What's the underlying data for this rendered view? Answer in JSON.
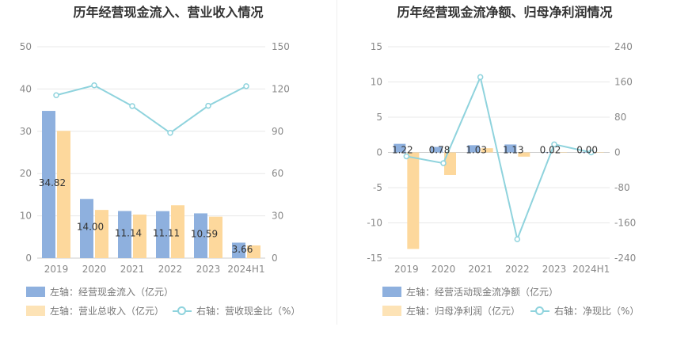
{
  "titles": {
    "left": "历年经营现金流入、营业收入情况",
    "right": "历年经营现金流净额、归母净利润情况"
  },
  "legends": {
    "left": [
      "左轴：经营现金流入（亿元）",
      "左轴：营业总收入（亿元）",
      "右轴：营收现金比（%）"
    ],
    "right": [
      "左轴：经营活动现金流净额（亿元）",
      "左轴：归母净利润（亿元）",
      "右轴：净现比（%）"
    ]
  },
  "colors": {
    "bar1": "#8eb0de",
    "bar2": "#fdd89c",
    "line": "#8fd3dd",
    "grid": "#e8e8e8",
    "axis": "#cccccc"
  },
  "chart_data": [
    {
      "type": "bar",
      "title": "历年经营现金流入、营业收入情况",
      "categories": [
        "2019",
        "2020",
        "2021",
        "2022",
        "2023",
        "2024H1"
      ],
      "left_axis": {
        "ylim": [
          0,
          50
        ],
        "ticks": [
          "0",
          "10",
          "20",
          "30",
          "40",
          "50"
        ]
      },
      "right_axis": {
        "ylim": [
          0,
          150
        ],
        "ticks": [
          "0",
          "30",
          "60",
          "90",
          "120",
          "150"
        ]
      },
      "series": [
        {
          "name": "左轴：经营现金流入（亿元）",
          "axis": "left",
          "kind": "bar",
          "values": [
            34.82,
            14.0,
            11.14,
            11.11,
            10.59,
            3.66
          ],
          "labels": [
            "34.82",
            "14.00",
            "11.14",
            "11.11",
            "10.59",
            "3.66"
          ]
        },
        {
          "name": "左轴：营业总收入（亿元）",
          "axis": "left",
          "kind": "bar",
          "values": [
            30.1,
            11.4,
            10.3,
            12.5,
            9.8,
            3.0
          ]
        },
        {
          "name": "右轴：营收现金比（%）",
          "axis": "right",
          "kind": "line",
          "values": [
            115.6,
            122.6,
            107.9,
            88.9,
            108.1,
            122.0
          ]
        }
      ]
    },
    {
      "type": "bar",
      "title": "历年经营现金流净额、归母净利润情况",
      "categories": [
        "2019",
        "2020",
        "2021",
        "2022",
        "2023",
        "2024H1"
      ],
      "left_axis": {
        "ylim": [
          -15,
          15
        ],
        "ticks": [
          "-15",
          "-10",
          "-5",
          "0",
          "5",
          "10",
          "15"
        ]
      },
      "right_axis": {
        "ylim": [
          -240,
          240
        ],
        "ticks": [
          "-240",
          "-160",
          "-80",
          "0",
          "80",
          "160",
          "240"
        ]
      },
      "series": [
        {
          "name": "左轴：经营活动现金流净额（亿元）",
          "axis": "left",
          "kind": "bar",
          "values": [
            1.22,
            0.78,
            1.03,
            1.13,
            0.02,
            0.0
          ],
          "labels": [
            "1.22",
            "0.78",
            "1.03",
            "1.13",
            "0.02",
            "0.00"
          ]
        },
        {
          "name": "左轴：归母净利润（亿元）",
          "axis": "left",
          "kind": "bar",
          "values": [
            -13.7,
            -3.2,
            0.6,
            -0.6,
            0.0,
            0.0
          ]
        },
        {
          "name": "右轴：净现比（%）",
          "axis": "right",
          "kind": "line",
          "values": [
            -8.9,
            -24.4,
            170.9,
            -197.1,
            18.3,
            0
          ]
        }
      ]
    }
  ]
}
